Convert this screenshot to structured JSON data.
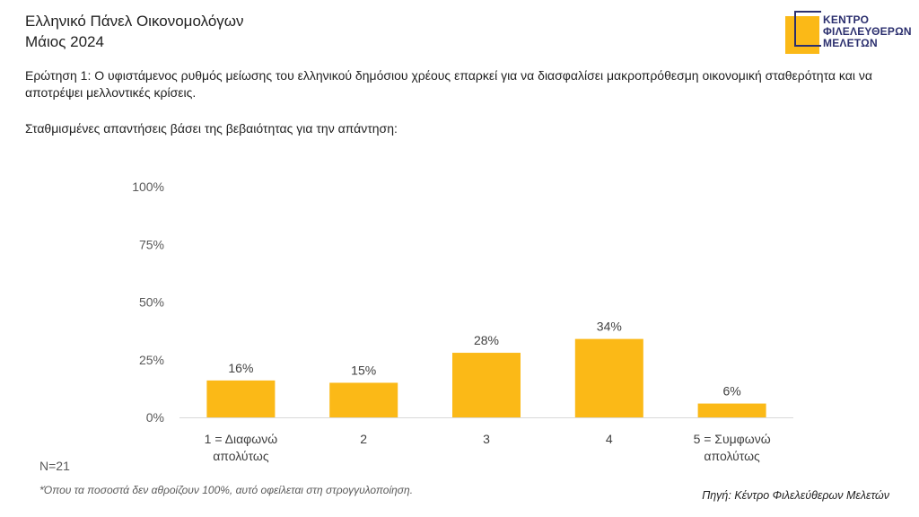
{
  "header": {
    "title": "Ελληνικό Πάνελ Οικονομολόγων",
    "date": "Μάιος 2024"
  },
  "logo": {
    "line1": "ΚΕΝΤΡΟ",
    "line2": "ΦΙΛΕΛΕΥΘΕΡΩΝ",
    "line3": "ΜΕΛΕΤΩΝ",
    "accent": "#fbb917",
    "frame": "#2b2f6e"
  },
  "question": "Ερώτηση 1: Ο υφιστάμενος ρυθμός μείωσης του ελληνικού δημόσιου χρέους επαρκεί για να διασφαλίσει μακροπρόθεσμη οικονομική σταθερότητα και να αποτρέψει μελλοντικές κρίσεις.",
  "subquestion": "Σταθμισμένες απαντήσεις βάσει της βεβαιότητας για την απάντηση:",
  "chart_data": {
    "type": "bar",
    "categories": [
      [
        "1 = Διαφωνώ",
        "απολύτως"
      ],
      [
        "2"
      ],
      [
        "3"
      ],
      [
        "4"
      ],
      [
        "5 = Συμφωνώ",
        "απολύτως"
      ]
    ],
    "values": [
      16,
      15,
      28,
      34,
      6
    ],
    "data_labels": [
      "16%",
      "15%",
      "28%",
      "34%",
      "6%"
    ],
    "yticks": [
      "0%",
      "25%",
      "50%",
      "75%",
      "100%"
    ],
    "ylim": [
      0,
      100
    ],
    "bar_color": "#fbb917",
    "grid": false
  },
  "sample": "N=21",
  "footnote": "*Όπου τα ποσοστά δεν αθροίζουν 100%, αυτό οφείλεται στη στρογγυλοποίηση.",
  "source": "Πηγή: Κέντρο Φιλελεύθερων Μελετών"
}
